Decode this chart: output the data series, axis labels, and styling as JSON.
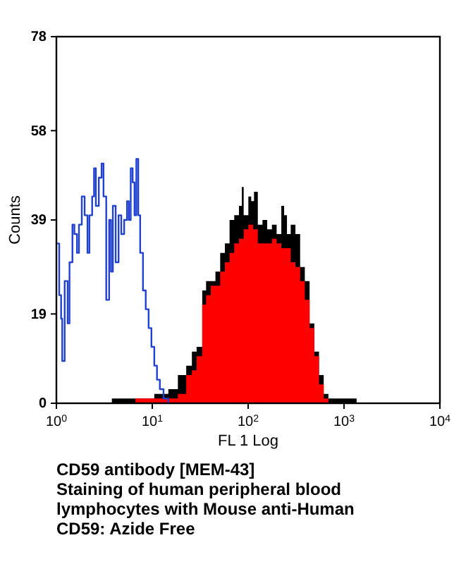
{
  "chart_data": {
    "type": "area",
    "xlabel": "FL 1 Log",
    "ylabel": "Counts",
    "log": "x",
    "xlim": [
      1,
      10000
    ],
    "ylim": [
      0,
      78
    ],
    "xticks": [
      {
        "value": 1,
        "label": "10$^{0}$"
      },
      {
        "value": 10,
        "label": "10$^{1}$"
      },
      {
        "value": 100,
        "label": "10$^{2}$"
      },
      {
        "value": 1000,
        "label": "10$^{3}$"
      },
      {
        "value": 10000,
        "label": "10$^{4}$"
      }
    ],
    "yticks": [
      0,
      19,
      39,
      58,
      78
    ],
    "annotations": [
      "CD59 antibody [MEM-43]",
      "Staining of human peripheral blood",
      "lymphocytes with Mouse anti-Human",
      "CD59: Azide Free"
    ],
    "series": [
      {
        "color": "#000000",
        "x": [
          1.93,
          3.79,
          7.48,
          10.5,
          14.7,
          18.5,
          22.6,
          25.9,
          29.0,
          33.2,
          36.4,
          40.7,
          45.6,
          51.1,
          57.2,
          64.0,
          71.6,
          80.2,
          85.9,
          89.8,
          100.5,
          107.6,
          115.1,
          126.1,
          141.1,
          158.0,
          177.0,
          198.2,
          221.8,
          237.3,
          254.1,
          278.0,
          311.2,
          348.5,
          390.0,
          437.5,
          489.8,
          548.3,
          613.8,
          687.1,
          1352,
          2667,
          6577
        ],
        "values": [
          0,
          1,
          1,
          2,
          3,
          6,
          8,
          11,
          12,
          24,
          26,
          26,
          28,
          32,
          34,
          39,
          40,
          42,
          46,
          40,
          44,
          43,
          45,
          38,
          39,
          37,
          38,
          36,
          42,
          40,
          36,
          38,
          36,
          29,
          26,
          17,
          11,
          6,
          2,
          1,
          0,
          0,
          0
        ]
      },
      {
        "color": "#ff0000",
        "x": [
          3.39,
          6.68,
          10.5,
          14.7,
          18.5,
          22.6,
          25.9,
          29.0,
          33.2,
          36.4,
          40.7,
          45.6,
          51.1,
          57.2,
          64.0,
          71.6,
          80.2,
          89.8,
          100.5,
          112.7,
          126.1,
          141.1,
          158.0,
          177.0,
          198.2,
          221.8,
          248.3,
          278.0,
          311.2,
          348.5,
          390.0,
          437.5,
          489.8,
          548.3,
          613.8,
          687.1
        ],
        "values": [
          0,
          1,
          1,
          1,
          2,
          6,
          7,
          10,
          21,
          23,
          25,
          25,
          28,
          30,
          32,
          34,
          35,
          37,
          38,
          37,
          34,
          34,
          34,
          35,
          34,
          33,
          33,
          30,
          29,
          26,
          22,
          16,
          10,
          4,
          1,
          0
        ]
      },
      {
        "type": "line",
        "color": "#2040d0",
        "x": [
          1,
          1.07,
          1.12,
          1.15,
          1.22,
          1.31,
          1.37,
          1.47,
          1.54,
          1.64,
          1.72,
          1.84,
          1.97,
          2.11,
          2.21,
          2.36,
          2.47,
          2.58,
          2.77,
          2.96,
          3.1,
          3.31,
          3.55,
          3.71,
          3.88,
          4.15,
          4.45,
          4.75,
          5.09,
          5.45,
          5.7,
          5.96,
          6.24,
          6.53,
          6.82,
          7.14,
          7.48,
          8.0,
          8.55,
          9.16,
          9.8,
          10.5,
          11.2,
          12.0,
          13.1,
          14.7
        ],
        "values": [
          34,
          23,
          18,
          9,
          26,
          17,
          30,
          38,
          36,
          32,
          38,
          44,
          40,
          32,
          40,
          44,
          50,
          42,
          48,
          51,
          44,
          22,
          39,
          28,
          42,
          30,
          40,
          36,
          39,
          43,
          39,
          50,
          47,
          40,
          52,
          40,
          32,
          24,
          20,
          16,
          12,
          8,
          5,
          3,
          1,
          0
        ]
      }
    ]
  }
}
